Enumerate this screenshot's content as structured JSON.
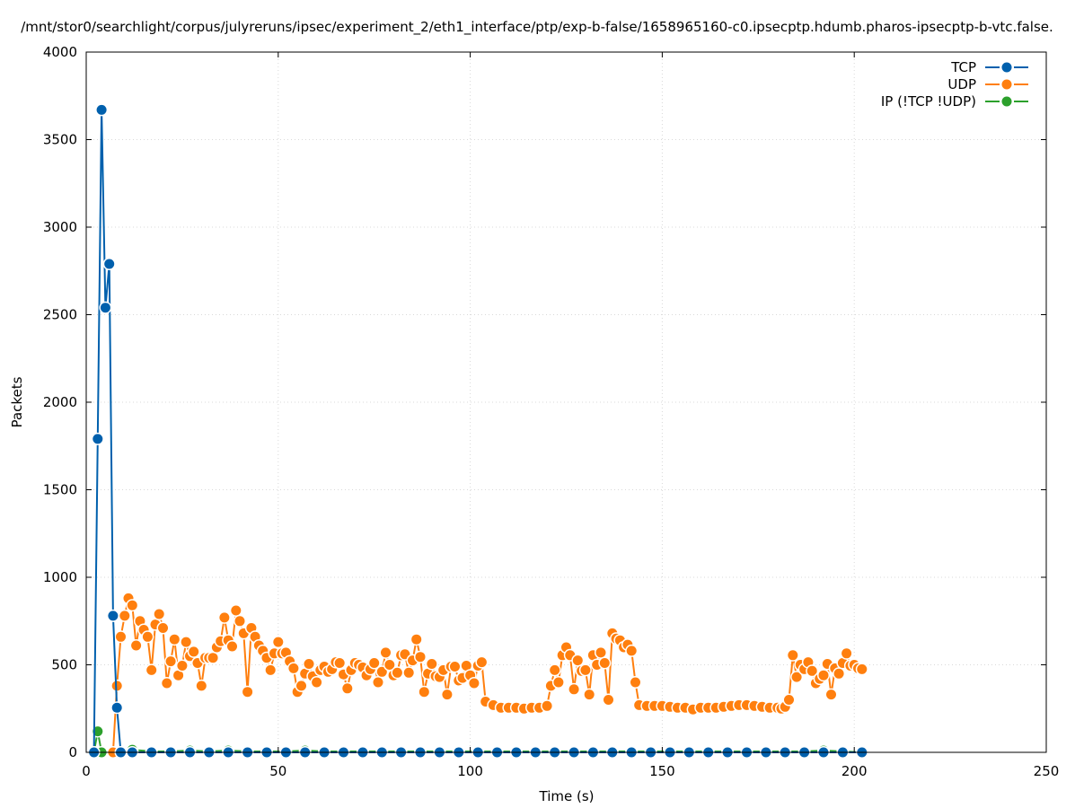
{
  "chart_data": {
    "type": "line",
    "title": "/mnt/stor0/searchlight/corpus/julyreruns/ipsec/experiment_2/eth1_interface/ptp/exp-b-false/1658965160-c0.ipsecptp.hdumb.pharos-ipsecptp-b-vtc.false.",
    "xlabel": "Time (s)",
    "ylabel": "Packets",
    "xlim": [
      0,
      250
    ],
    "ylim": [
      0,
      4000
    ],
    "x_ticks": [
      0,
      50,
      100,
      150,
      200,
      250
    ],
    "y_ticks": [
      0,
      500,
      1000,
      1500,
      2000,
      2500,
      3000,
      3500,
      4000
    ],
    "grid": true,
    "legend_position": "top-right",
    "series": [
      {
        "name": "TCP",
        "color": "#0060ad",
        "x": [
          2,
          3,
          4,
          5,
          6,
          7,
          8,
          9,
          12,
          17,
          22,
          27,
          32,
          37,
          42,
          47,
          52,
          57,
          62,
          67,
          72,
          77,
          82,
          87,
          92,
          97,
          102,
          107,
          112,
          117,
          122,
          127,
          132,
          137,
          142,
          147,
          152,
          157,
          162,
          167,
          172,
          177,
          182,
          187,
          192,
          197,
          202
        ],
        "y": [
          0,
          1790,
          3670,
          2540,
          2790,
          780,
          255,
          0,
          0,
          0,
          0,
          0,
          0,
          0,
          0,
          0,
          0,
          0,
          0,
          0,
          0,
          0,
          0,
          0,
          0,
          0,
          0,
          0,
          0,
          0,
          0,
          0,
          0,
          0,
          0,
          0,
          0,
          0,
          0,
          0,
          0,
          0,
          0,
          0,
          0,
          0,
          0
        ]
      },
      {
        "name": "UDP",
        "color": "#ff7f0e",
        "x": [
          7,
          8,
          9,
          10,
          11,
          12,
          13,
          14,
          15,
          16,
          17,
          18,
          19,
          20,
          21,
          22,
          23,
          24,
          25,
          26,
          27,
          28,
          29,
          30,
          31,
          32,
          33,
          34,
          35,
          36,
          37,
          38,
          39,
          40,
          41,
          42,
          43,
          44,
          45,
          46,
          47,
          48,
          49,
          50,
          51,
          52,
          53,
          54,
          55,
          56,
          57,
          58,
          59,
          60,
          61,
          62,
          63,
          64,
          65,
          66,
          67,
          68,
          69,
          70,
          71,
          72,
          73,
          74,
          75,
          76,
          77,
          78,
          79,
          80,
          81,
          82,
          83,
          84,
          85,
          86,
          87,
          88,
          89,
          90,
          91,
          92,
          93,
          94,
          95,
          96,
          97,
          98,
          99,
          100,
          101,
          102,
          103,
          104,
          106,
          108,
          110,
          112,
          114,
          116,
          118,
          120,
          121,
          122,
          123,
          124,
          125,
          126,
          127,
          128,
          129,
          130,
          131,
          132,
          133,
          134,
          135,
          136,
          137,
          138,
          139,
          140,
          141,
          142,
          143,
          144,
          146,
          148,
          150,
          152,
          154,
          156,
          158,
          160,
          162,
          164,
          166,
          168,
          170,
          172,
          174,
          176,
          178,
          180,
          181,
          182,
          183,
          184,
          185,
          186,
          187,
          188,
          189,
          190,
          191,
          192,
          193,
          194,
          195,
          196,
          197,
          198,
          199,
          200,
          201,
          202
        ],
        "y": [
          0,
          380,
          660,
          780,
          880,
          840,
          610,
          750,
          700,
          660,
          470,
          730,
          790,
          710,
          395,
          520,
          645,
          440,
          495,
          630,
          550,
          575,
          510,
          380,
          540,
          540,
          540,
          600,
          635,
          770,
          640,
          605,
          810,
          750,
          680,
          345,
          710,
          660,
          610,
          580,
          540,
          470,
          565,
          630,
          565,
          570,
          520,
          480,
          345,
          380,
          450,
          505,
          435,
          400,
          470,
          490,
          460,
          475,
          515,
          510,
          445,
          365,
          470,
          510,
          500,
          485,
          440,
          475,
          510,
          400,
          460,
          570,
          500,
          440,
          455,
          555,
          560,
          455,
          525,
          645,
          545,
          345,
          450,
          505,
          435,
          430,
          470,
          330,
          490,
          490,
          410,
          425,
          495,
          440,
          395,
          495,
          515,
          290,
          270,
          255,
          255,
          255,
          250,
          255,
          255,
          265,
          380,
          470,
          400,
          555,
          600,
          555,
          360,
          525,
          465,
          470,
          330,
          555,
          500,
          570,
          510,
          300,
          680,
          650,
          640,
          600,
          615,
          580,
          400,
          270,
          265,
          265,
          265,
          260,
          255,
          255,
          245,
          255,
          255,
          255,
          260,
          265,
          270,
          270,
          265,
          260,
          255,
          255,
          250,
          260,
          300,
          555,
          430,
          500,
          475,
          515,
          465,
          395,
          420,
          440,
          505,
          330,
          480,
          450,
          510,
          565,
          495,
          500,
          480,
          475
        ]
      },
      {
        "name": "IP (!TCP  !UDP)",
        "color": "#2ca02c",
        "x": [
          2,
          3,
          4,
          7,
          12,
          17,
          22,
          27,
          32,
          37,
          42,
          47,
          52,
          57,
          62,
          67,
          72,
          77,
          82,
          87,
          92,
          97,
          102,
          107,
          112,
          117,
          122,
          127,
          132,
          137,
          142,
          147,
          152,
          157,
          162,
          167,
          172,
          177,
          182,
          187,
          192,
          197,
          202
        ],
        "y": [
          0,
          120,
          0,
          0,
          15,
          5,
          5,
          10,
          5,
          10,
          5,
          5,
          5,
          10,
          5,
          5,
          5,
          5,
          5,
          5,
          5,
          5,
          5,
          5,
          5,
          5,
          5,
          5,
          5,
          5,
          5,
          5,
          5,
          5,
          5,
          5,
          5,
          5,
          5,
          5,
          10,
          5,
          0
        ]
      }
    ]
  }
}
